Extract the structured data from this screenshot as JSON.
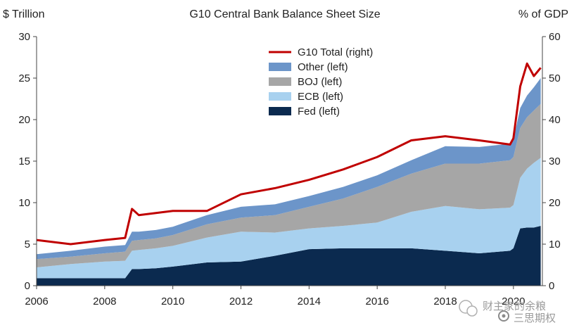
{
  "chart_data": {
    "type": "area",
    "title": "G10 Central Bank Balance Sheet Size",
    "ylabel_left": "$ Trillion",
    "ylabel_right": "% of GDP",
    "xlim": [
      2006.0,
      2020.85
    ],
    "ylim_left": [
      0,
      30
    ],
    "ylim_right": [
      0,
      60
    ],
    "x_ticks": [
      2006,
      2008,
      2010,
      2012,
      2014,
      2016,
      2018,
      2020
    ],
    "x_tick_labels": [
      "2006",
      "2008",
      "2010",
      "2012",
      "2014",
      "2016",
      "2018",
      "2020"
    ],
    "y_ticks_left": [
      0,
      5,
      10,
      15,
      20,
      25,
      30
    ],
    "y_tick_labels_left": [
      "0",
      "5",
      "10",
      "15",
      "20",
      "25",
      "30"
    ],
    "y_ticks_right": [
      0,
      10,
      20,
      30,
      40,
      50,
      60
    ],
    "y_tick_labels_right": [
      "0",
      "10",
      "20",
      "30",
      "40",
      "50",
      "60"
    ],
    "legend_position": "top-center",
    "grid": false,
    "x": [
      2006.0,
      2007.0,
      2008.0,
      2008.6,
      2008.8,
      2009.0,
      2009.5,
      2010.0,
      2011.0,
      2012.0,
      2013.0,
      2014.0,
      2015.0,
      2016.0,
      2017.0,
      2018.0,
      2019.0,
      2019.9,
      2020.0,
      2020.2,
      2020.4,
      2020.6,
      2020.8
    ],
    "series": [
      {
        "name": "Fed (left)",
        "axis": "left",
        "color": "#0b2a4f",
        "values": [
          0.9,
          0.9,
          0.9,
          0.9,
          2.0,
          2.0,
          2.1,
          2.3,
          2.8,
          2.9,
          3.6,
          4.4,
          4.5,
          4.5,
          4.5,
          4.2,
          3.9,
          4.2,
          4.5,
          6.9,
          7.0,
          7.0,
          7.2
        ]
      },
      {
        "name": "ECB (left)",
        "axis": "left",
        "color": "#a8d1ef",
        "values": [
          1.3,
          1.7,
          2.0,
          2.1,
          2.2,
          2.3,
          2.4,
          2.5,
          3.0,
          3.6,
          2.8,
          2.5,
          2.7,
          3.1,
          4.4,
          5.4,
          5.3,
          5.2,
          5.2,
          6.1,
          7.1,
          7.8,
          8.2
        ]
      },
      {
        "name": "BOJ (left)",
        "axis": "left",
        "color": "#a6a6a6",
        "values": [
          1.0,
          0.9,
          1.0,
          1.1,
          1.2,
          1.2,
          1.2,
          1.3,
          1.6,
          1.7,
          2.1,
          2.6,
          3.3,
          4.3,
          4.6,
          5.1,
          5.5,
          5.7,
          5.8,
          6.0,
          6.2,
          6.3,
          6.5
        ]
      },
      {
        "name": "Other (left)",
        "axis": "left",
        "color": "#6c95c9",
        "values": [
          0.6,
          0.7,
          0.8,
          0.8,
          1.1,
          1.0,
          1.0,
          1.0,
          1.1,
          1.3,
          1.3,
          1.3,
          1.4,
          1.4,
          1.6,
          2.1,
          2.0,
          2.0,
          2.1,
          2.4,
          2.6,
          2.8,
          3.1
        ]
      },
      {
        "name": "G10 Total (right)",
        "axis": "right",
        "type": "line",
        "color": "#c00000",
        "values": [
          11.0,
          10.0,
          11.0,
          11.5,
          18.5,
          17.0,
          17.5,
          18.0,
          18.0,
          22.0,
          23.5,
          25.5,
          28.0,
          31.0,
          35.0,
          36.0,
          35.0,
          34.0,
          35.5,
          48.0,
          53.5,
          50.5,
          52.5
        ]
      }
    ],
    "watermark_text": "财主家的余粮",
    "watermark_subtext": "三思期权"
  }
}
